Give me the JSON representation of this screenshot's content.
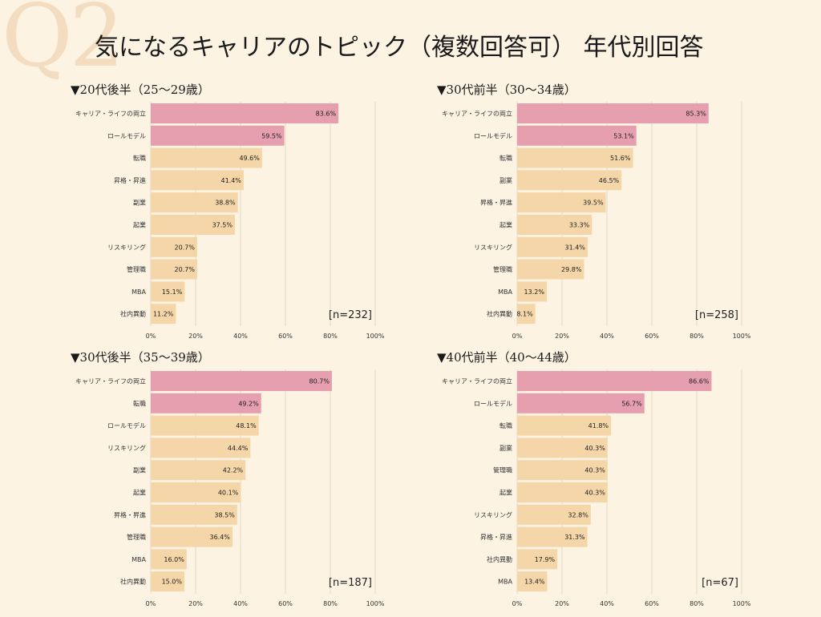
{
  "watermark": "Q2",
  "title": "気になるキャリアのトピック（複数回答可） 年代別回答",
  "colors": {
    "highlight": "#e69fae",
    "bar": "#f5d6a8",
    "grid": "#e2d8c8",
    "background": "#fdf3e3"
  },
  "chart_data": [
    {
      "type": "bar",
      "orientation": "horizontal",
      "title": "▼20代後半（25～29歳）",
      "n_label": "[n=232]",
      "categories": [
        "キャリア・ライフの両立",
        "ロールモデル",
        "転職",
        "昇格・昇進",
        "副業",
        "起業",
        "リスキリング",
        "管理職",
        "MBA",
        "社内異動"
      ],
      "values": [
        83.6,
        59.5,
        49.6,
        41.4,
        38.8,
        37.5,
        20.7,
        20.7,
        15.1,
        11.2
      ],
      "value_labels": [
        "83.6%",
        "59.5%",
        "49.6%",
        "41.4%",
        "38.8%",
        "37.5%",
        "20.7%",
        "20.7%",
        "15.1%",
        "11.2%"
      ],
      "highlight_count": 2,
      "xlim": [
        0,
        100
      ],
      "ticks": [
        "0%",
        "20%",
        "40%",
        "60%",
        "80%",
        "100%"
      ]
    },
    {
      "type": "bar",
      "orientation": "horizontal",
      "title": "▼30代前半（30～34歳）",
      "n_label": "[n=258]",
      "categories": [
        "キャリア・ライフの両立",
        "ロールモデル",
        "転職",
        "副業",
        "昇格・昇進",
        "起業",
        "リスキリング",
        "管理職",
        "MBA",
        "社内異動"
      ],
      "values": [
        85.3,
        53.1,
        51.6,
        46.5,
        39.5,
        33.3,
        31.4,
        29.8,
        13.2,
        8.1
      ],
      "value_labels": [
        "85.3%",
        "53.1%",
        "51.6%",
        "46.5%",
        "39.5%",
        "33.3%",
        "31.4%",
        "29.8%",
        "13.2%",
        "8.1%"
      ],
      "highlight_count": 2,
      "xlim": [
        0,
        100
      ],
      "ticks": [
        "0%",
        "20%",
        "40%",
        "60%",
        "80%",
        "100%"
      ]
    },
    {
      "type": "bar",
      "orientation": "horizontal",
      "title": "▼30代後半（35～39歳）",
      "n_label": "[n=187]",
      "categories": [
        "キャリア・ライフの両立",
        "転職",
        "ロールモデル",
        "リスキリング",
        "副業",
        "起業",
        "昇格・昇進",
        "管理職",
        "MBA",
        "社内異動"
      ],
      "values": [
        80.7,
        49.2,
        48.1,
        44.4,
        42.2,
        40.1,
        38.5,
        36.4,
        16.0,
        15.0
      ],
      "value_labels": [
        "80.7%",
        "49.2%",
        "48.1%",
        "44.4%",
        "42.2%",
        "40.1%",
        "38.5%",
        "36.4%",
        "16.0%",
        "15.0%"
      ],
      "highlight_count": 2,
      "xlim": [
        0,
        100
      ],
      "ticks": [
        "0%",
        "20%",
        "40%",
        "60%",
        "80%",
        "100%"
      ]
    },
    {
      "type": "bar",
      "orientation": "horizontal",
      "title": "▼40代前半（40～44歳）",
      "n_label": "[n=67]",
      "categories": [
        "キャリア・ライフの両立",
        "ロールモデル",
        "転職",
        "副業",
        "管理職",
        "起業",
        "リスキリング",
        "昇格・昇進",
        "社内異動",
        "MBA"
      ],
      "values": [
        86.6,
        56.7,
        41.8,
        40.3,
        40.3,
        40.3,
        32.8,
        31.3,
        17.9,
        13.4
      ],
      "value_labels": [
        "86.6%",
        "56.7%",
        "41.8%",
        "40.3%",
        "40.3%",
        "40.3%",
        "32.8%",
        "31.3%",
        "17.9%",
        "13.4%"
      ],
      "highlight_count": 2,
      "xlim": [
        0,
        100
      ],
      "ticks": [
        "0%",
        "20%",
        "40%",
        "60%",
        "80%",
        "100%"
      ]
    }
  ]
}
